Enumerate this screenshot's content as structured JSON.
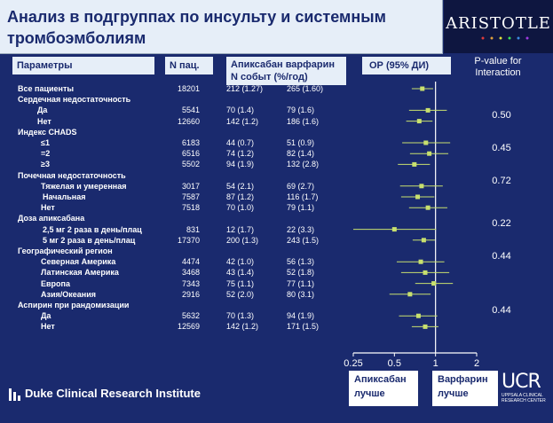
{
  "slide": {
    "title": "Анализ в подгруппах по инсульту и системным тромбоэмболиям",
    "logo_text": "ARISTOTLE"
  },
  "headers": {
    "params": "Параметры",
    "n": "N пац.",
    "drugs_line1": "Апиксабан варфарин",
    "drugs_line2": "N событ (%/год)",
    "or": "ОР (95% ДИ)",
    "pvalue": "P-value for Interaction"
  },
  "rows": [
    {
      "label": "Все пациенты",
      "indent": 0,
      "n": "18201",
      "apixaban": "212 (1.27)",
      "warfarin": "265 (1.60)"
    },
    {
      "label": "Сердечная недостаточность",
      "indent": 0,
      "n": "",
      "apixaban": "",
      "warfarin": ""
    },
    {
      "label": "Да",
      "indent": 1,
      "n": "5541",
      "apixaban": "70 (1.4)",
      "warfarin": "79 (1.6)"
    },
    {
      "label": "Нет",
      "indent": 1,
      "n": "12660",
      "apixaban": "142 (1.2)",
      "warfarin": "186 (1.6)"
    },
    {
      "label": "Индекс CHADS",
      "indent": 0,
      "n": "",
      "apixaban": "",
      "warfarin": ""
    },
    {
      "label": "≤1",
      "indent": 2,
      "n": "6183",
      "apixaban": "44 (0.7)",
      "warfarin": "51 (0.9)"
    },
    {
      "label": "=2",
      "indent": 2,
      "n": "6516",
      "apixaban": "74 (1.2)",
      "warfarin": "82 (1.4)"
    },
    {
      "label": "≥3",
      "indent": 2,
      "n": "5502",
      "apixaban": "94 (1.9)",
      "warfarin": "132 (2.8)"
    },
    {
      "label": "Почечная недостаточность",
      "indent": 0,
      "n": "",
      "apixaban": "",
      "warfarin": ""
    },
    {
      "label": "Тяжелая и умеренная",
      "indent": 2,
      "n": "3017",
      "apixaban": "54 (2.1)",
      "warfarin": "69 (2.7)"
    },
    {
      "label": "Начальная",
      "indent": 3,
      "n": "7587",
      "apixaban": "87 (1.2)",
      "warfarin": "116 (1.7)"
    },
    {
      "label": "Нет",
      "indent": 2,
      "n": "7518",
      "apixaban": "70 (1.0)",
      "warfarin": "79 (1.1)"
    },
    {
      "label": "Доза апиксабана",
      "indent": 0,
      "n": "",
      "apixaban": "",
      "warfarin": ""
    },
    {
      "label": "2,5 мг 2 раза в день/плац",
      "indent": 3,
      "n": "831",
      "apixaban": "12 (1.7)",
      "warfarin": "22 (3.3)"
    },
    {
      "label": "5 мг 2 раза в день/плац",
      "indent": 3,
      "n": "17370",
      "apixaban": "200 (1.3)",
      "warfarin": "243 (1.5)"
    },
    {
      "label": "Географический регион",
      "indent": 0,
      "n": "",
      "apixaban": "",
      "warfarin": ""
    },
    {
      "label": "Северная Америка",
      "indent": 2,
      "n": "4474",
      "apixaban": "42 (1.0)",
      "warfarin": "56 (1.3)"
    },
    {
      "label": "Латинская Америка",
      "indent": 2,
      "n": "3468",
      "apixaban": "43 (1.4)",
      "warfarin": "52 (1.8)"
    },
    {
      "label": "Европа",
      "indent": 2,
      "n": "7343",
      "apixaban": "75 (1.1)",
      "warfarin": "77 (1.1)"
    },
    {
      "label": "Азия/Океания",
      "indent": 2,
      "n": "2916",
      "apixaban": "52 (2.0)",
      "warfarin": "80 (3.1)"
    },
    {
      "label": "Аспирин при рандомизации",
      "indent": 0,
      "n": "",
      "apixaban": "",
      "warfarin": ""
    },
    {
      "label": "Да",
      "indent": 2,
      "n": "5632",
      "apixaban": "70 (1.3)",
      "warfarin": "94 (1.9)"
    },
    {
      "label": "Нет",
      "indent": 2,
      "n": "12569",
      "apixaban": "142 (1.2)",
      "warfarin": "171 (1.5)"
    }
  ],
  "pvalues": [
    {
      "value": "0.50",
      "row": 2
    },
    {
      "value": "0.45",
      "row": 5
    },
    {
      "value": "0.72",
      "row": 8
    },
    {
      "value": "0.22",
      "row": 12
    },
    {
      "value": "0.44",
      "row": 15
    },
    {
      "value": "0.44",
      "row": 20
    }
  ],
  "chart_data": {
    "type": "scatter",
    "scale": "log",
    "xlim": [
      0.25,
      2
    ],
    "ref_line": 1,
    "ticks": [
      "0.25",
      "0.5",
      "1",
      "2"
    ],
    "tick_values": [
      0.25,
      0.5,
      1,
      2
    ],
    "points": [
      {
        "row": 0,
        "or": 0.8,
        "lo": 0.67,
        "hi": 0.96
      },
      {
        "row": 2,
        "or": 0.88,
        "lo": 0.64,
        "hi": 1.21
      },
      {
        "row": 3,
        "or": 0.76,
        "lo": 0.61,
        "hi": 0.95
      },
      {
        "row": 5,
        "or": 0.85,
        "lo": 0.57,
        "hi": 1.28
      },
      {
        "row": 6,
        "or": 0.9,
        "lo": 0.65,
        "hi": 1.24
      },
      {
        "row": 7,
        "or": 0.7,
        "lo": 0.53,
        "hi": 0.91
      },
      {
        "row": 9,
        "or": 0.79,
        "lo": 0.55,
        "hi": 1.13
      },
      {
        "row": 10,
        "or": 0.74,
        "lo": 0.56,
        "hi": 0.98
      },
      {
        "row": 11,
        "or": 0.88,
        "lo": 0.64,
        "hi": 1.22
      },
      {
        "row": 13,
        "or": 0.5,
        "lo": 0.25,
        "hi": 1.01
      },
      {
        "row": 14,
        "or": 0.82,
        "lo": 0.68,
        "hi": 0.99
      },
      {
        "row": 16,
        "or": 0.78,
        "lo": 0.52,
        "hi": 1.16
      },
      {
        "row": 17,
        "or": 0.84,
        "lo": 0.56,
        "hi": 1.26
      },
      {
        "row": 18,
        "or": 0.97,
        "lo": 0.71,
        "hi": 1.34
      },
      {
        "row": 19,
        "or": 0.65,
        "lo": 0.46,
        "hi": 0.92
      },
      {
        "row": 21,
        "or": 0.75,
        "lo": 0.54,
        "hi": 1.03
      },
      {
        "row": 22,
        "or": 0.84,
        "lo": 0.67,
        "hi": 1.05
      }
    ],
    "colors": {
      "point": "#c8e06e",
      "line": "#c8e06e",
      "axis": "#ffffff"
    }
  },
  "footer": {
    "apixaban_better_1": "Апиксабан",
    "apixaban_better_2": "лучше",
    "warfarin_better_1": "Варфарин",
    "warfarin_better_2": "лучше",
    "duke": "Duke Clinical Research Institute",
    "ucr": "UCR",
    "ucr_sub": "UPPSALA CLINICAL RESEARCH CENTER"
  }
}
